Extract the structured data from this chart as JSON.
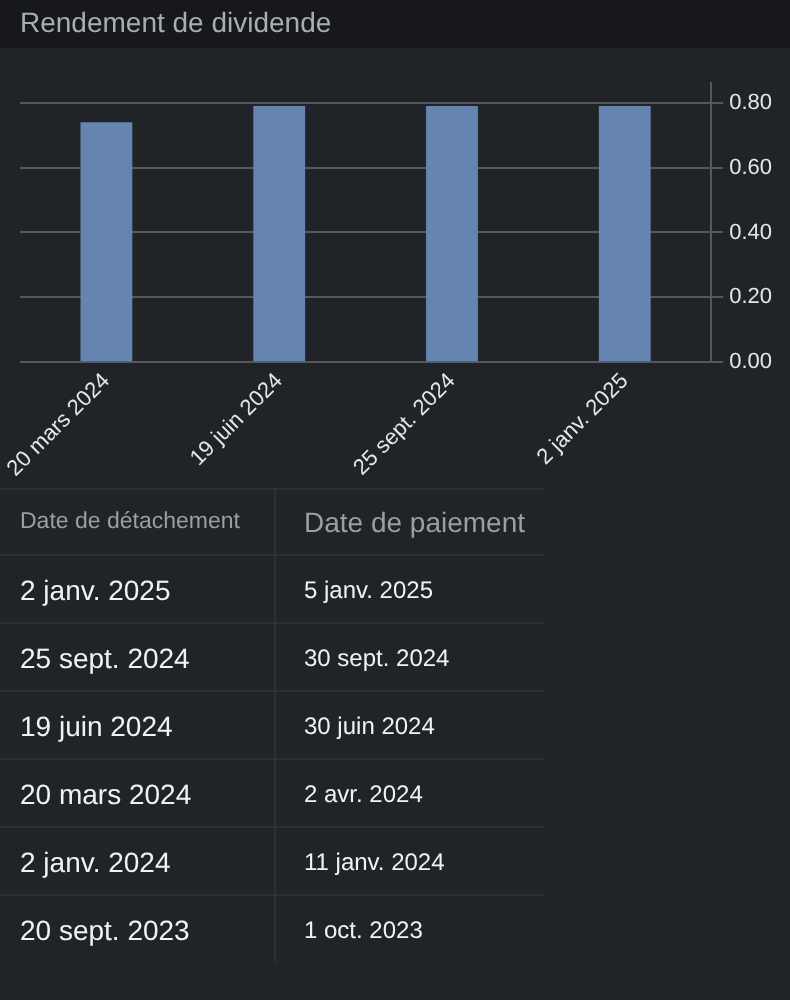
{
  "chart_data": [
    {
      "type": "bar",
      "title": "Rendement de dividende",
      "categories": [
        "20 mars 2024",
        "19 juin 2024",
        "25 sept. 2024",
        "2 janv. 2025"
      ],
      "values": [
        0.74,
        0.79,
        0.79,
        0.79
      ],
      "color": "#6585b0",
      "ylim": [
        0,
        0.86
      ],
      "yticks": [
        {
          "value": 0,
          "label": "0.00"
        },
        {
          "value": 0.2,
          "label": "0.20"
        },
        {
          "value": 0.4,
          "label": "0.40"
        },
        {
          "value": 0.6,
          "label": "0.60"
        },
        {
          "value": 0.8,
          "label": "0.80"
        }
      ],
      "grid": "y",
      "legend": false
    },
    {
      "type": "other",
      "annotations": [
        "Date de détachement",
        "Date de paiement",
        "2 janv. 2025",
        "5 janv. 2025",
        "25 sept. 2024",
        "30 sept. 2024",
        "19 juin 2024",
        "30 juin 2024",
        "20 mars 2024",
        "2 avr. 2024",
        "2 janv. 2024",
        "11 janv. 2024",
        "20 sept. 2023",
        "1 oct. 2023"
      ]
    }
  ]
}
